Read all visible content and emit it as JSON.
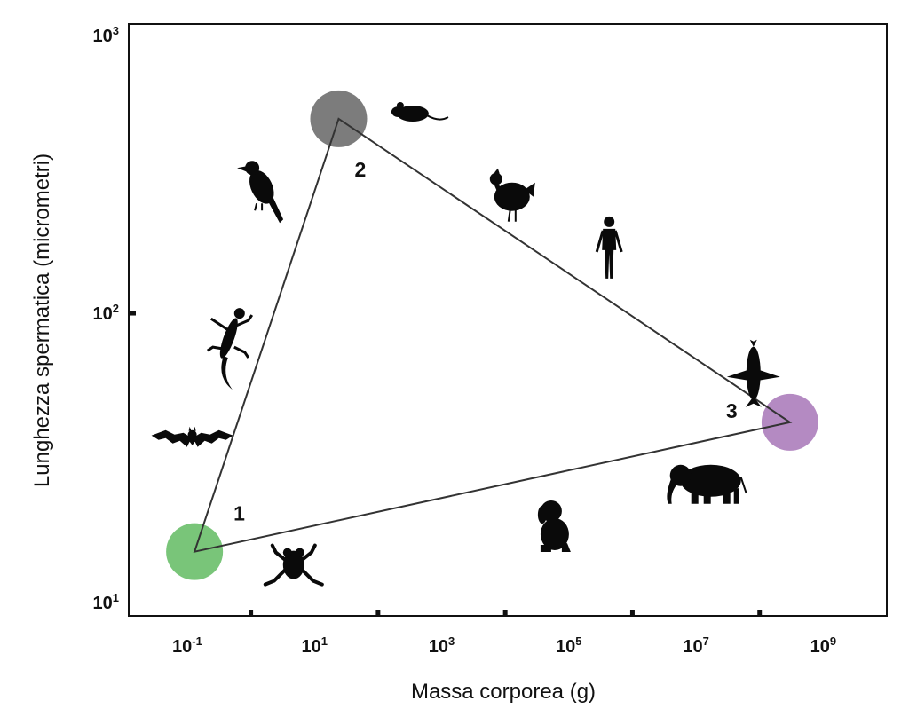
{
  "chart_data": {
    "type": "scatter",
    "title": "",
    "xlabel": "Massa corporea (g)",
    "ylabel": "Lunghezza spermatica (micrometri)",
    "x_scale": "log",
    "y_scale": "log",
    "xlim": [
      0.012,
      10000000000.0
    ],
    "ylim": [
      9,
      1000
    ],
    "x_ticks": [
      {
        "base": "10",
        "exp": "-1",
        "value": 0.1
      },
      {
        "base": "10",
        "exp": "1",
        "value": 10
      },
      {
        "base": "10",
        "exp": "3",
        "value": 1000
      },
      {
        "base": "10",
        "exp": "5",
        "value": 100000
      },
      {
        "base": "10",
        "exp": "7",
        "value": 10000000
      },
      {
        "base": "10",
        "exp": "9",
        "value": 1000000000
      }
    ],
    "x_minor_ticks": [
      1,
      100,
      10000,
      1000000,
      100000000
    ],
    "y_ticks": [
      {
        "base": "10",
        "exp": "1",
        "value": 10
      },
      {
        "base": "10",
        "exp": "2",
        "value": 100
      },
      {
        "base": "10",
        "exp": "3",
        "value": 1000
      }
    ],
    "grid": false,
    "legend": "none",
    "vertices": [
      {
        "label": "1",
        "x": 0.13,
        "y": 15,
        "color": "#5cb85c"
      },
      {
        "label": "2",
        "x": 24,
        "y": 470,
        "color": "#5f5f5f"
      },
      {
        "label": "3",
        "x": 300000000,
        "y": 42,
        "color": "#a470b5"
      }
    ],
    "triangle_order": [
      0,
      1,
      2
    ],
    "animals": [
      {
        "name": "bat-icon",
        "x": 0.12,
        "y": 37
      },
      {
        "name": "lizard-icon",
        "x": 0.45,
        "y": 82
      },
      {
        "name": "crow-icon",
        "x": 1.4,
        "y": 280
      },
      {
        "name": "frog-icon",
        "x": 4.7,
        "y": 13.5
      },
      {
        "name": "mouse-icon",
        "x": 350,
        "y": 490
      },
      {
        "name": "chicken-icon",
        "x": 12000,
        "y": 260
      },
      {
        "name": "human-icon",
        "x": 430000,
        "y": 170
      },
      {
        "name": "dog-icon",
        "x": 60000,
        "y": 18.5
      },
      {
        "name": "whale-icon",
        "x": 80000000,
        "y": 62
      },
      {
        "name": "elephant-icon",
        "x": 15000000,
        "y": 26
      }
    ]
  }
}
